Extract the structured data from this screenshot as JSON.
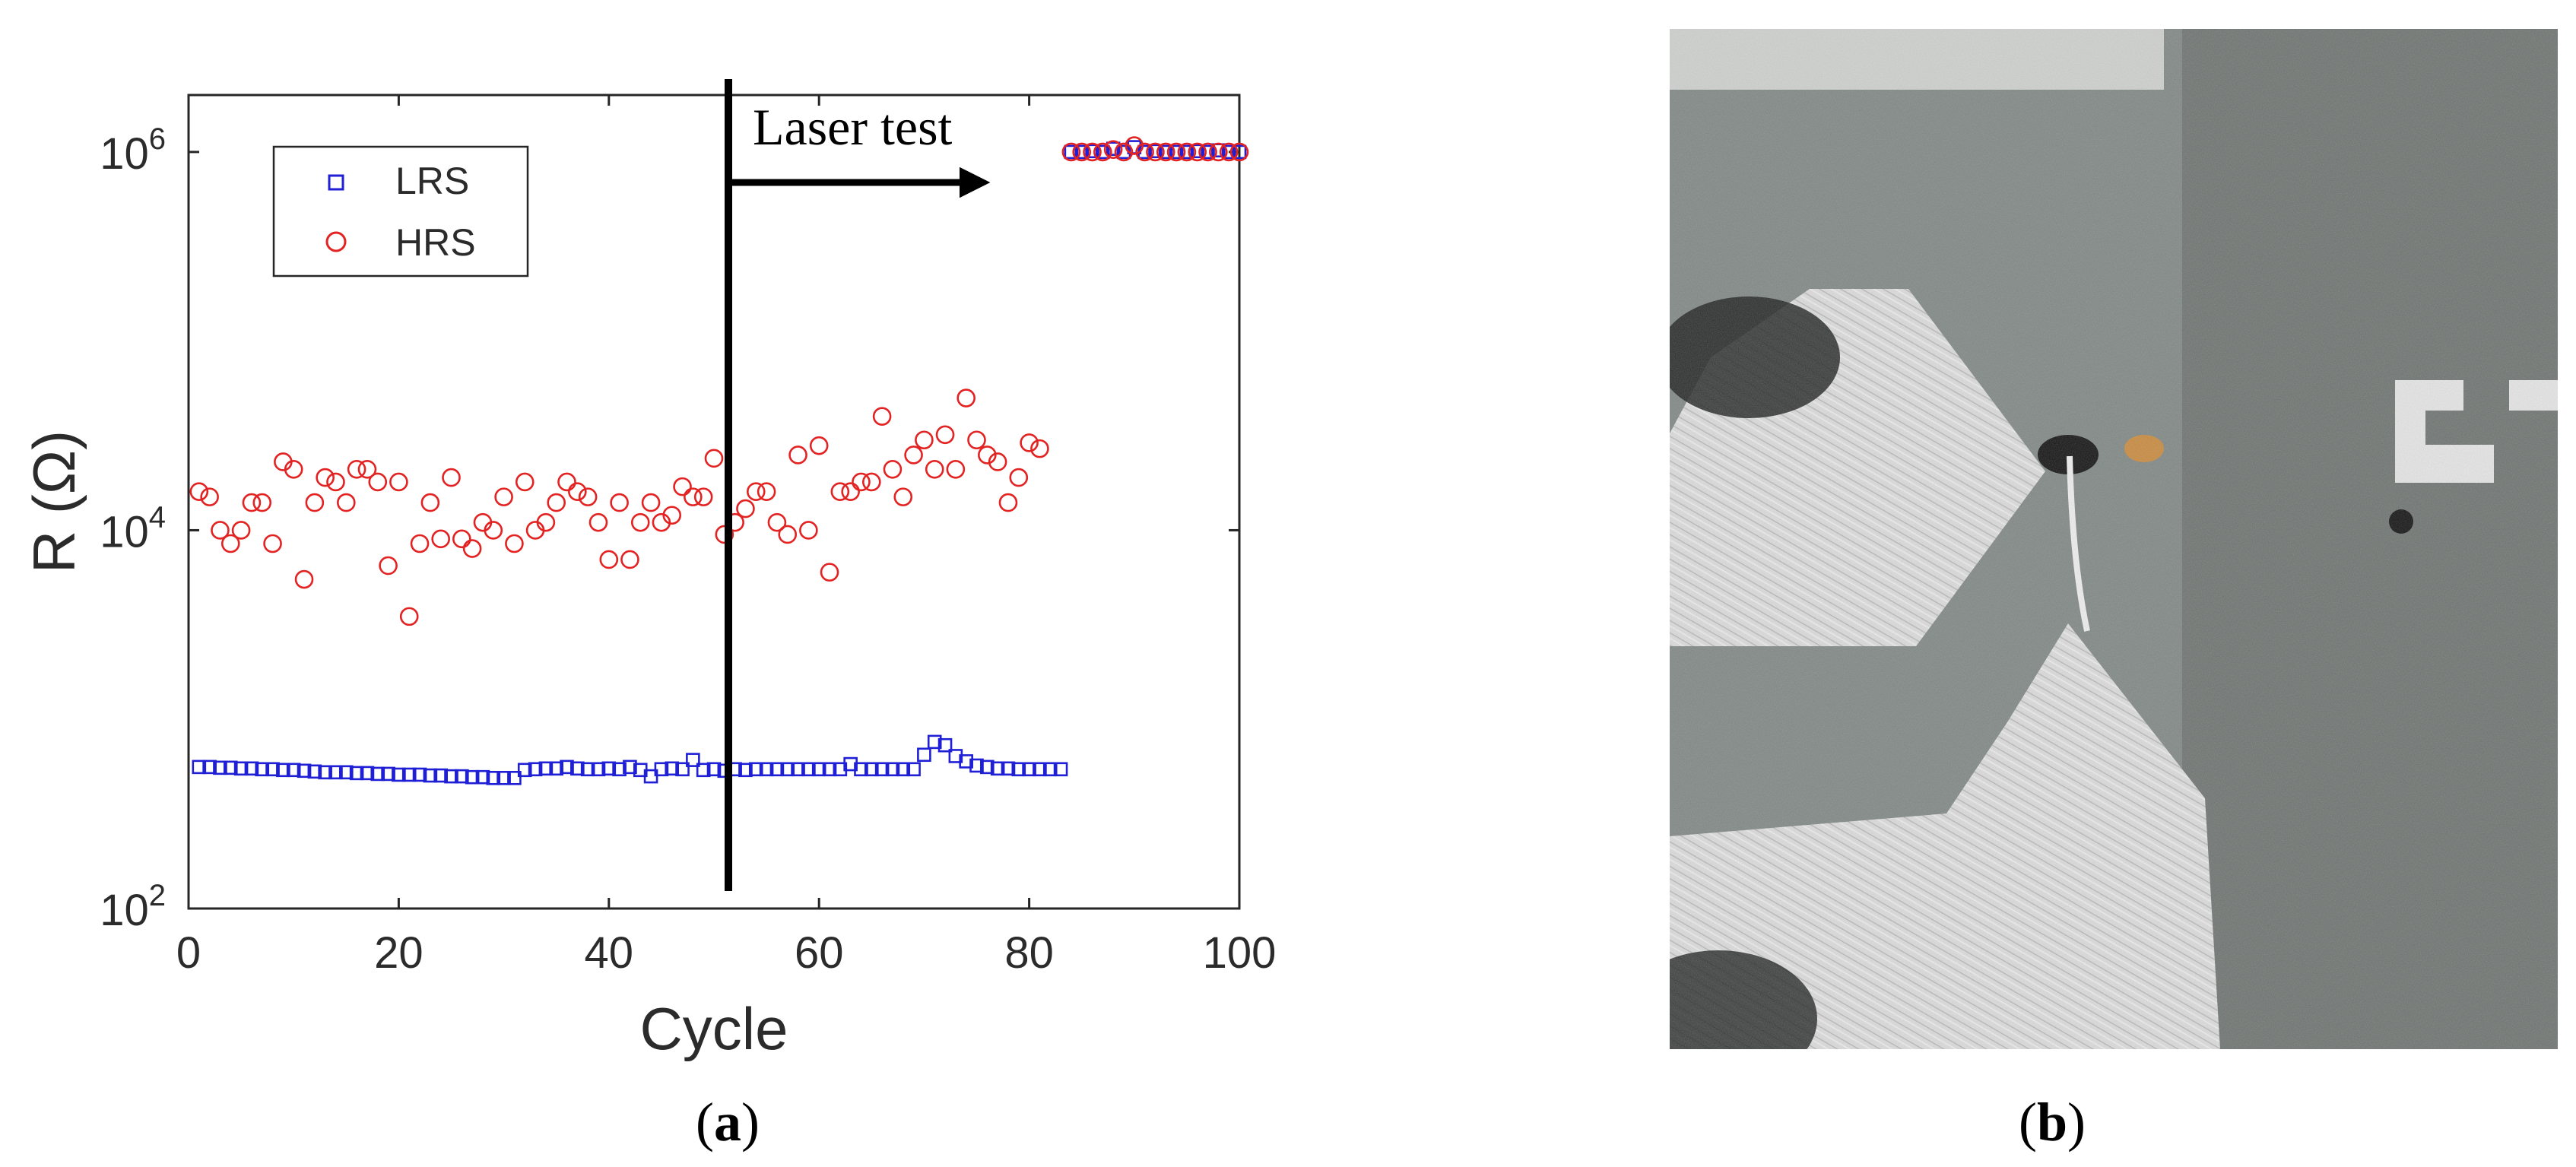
{
  "chart_data": {
    "type": "scatter",
    "xlabel": "Cycle",
    "ylabel": "R (Ω)",
    "xlim": [
      0,
      100
    ],
    "ylim": [
      100,
      2000000
    ],
    "yscale": "log",
    "xticks": [
      "0",
      "20",
      "40",
      "60",
      "80",
      "100"
    ],
    "yticks": [
      {
        "base": "10",
        "exp": "2"
      },
      {
        "base": "10",
        "exp": "4"
      },
      {
        "base": "10",
        "exp": "6"
      }
    ],
    "legend": {
      "placement": "top-left",
      "entries": [
        "LRS",
        "HRS"
      ]
    },
    "annotation": {
      "text": "Laser test",
      "x_line": 51.5,
      "arrow_from": 51.5,
      "arrow_to": 78
    },
    "grid": false,
    "series": [
      {
        "name": "LRS",
        "color": "#1f1fd6",
        "marker": "square",
        "x": [
          1,
          2,
          3,
          4,
          5,
          6,
          7,
          8,
          9,
          10,
          11,
          12,
          13,
          14,
          15,
          16,
          17,
          18,
          19,
          20,
          21,
          22,
          23,
          24,
          25,
          26,
          27,
          28,
          29,
          30,
          31,
          32,
          33,
          34,
          35,
          36,
          37,
          38,
          39,
          40,
          41,
          42,
          43,
          44,
          45,
          46,
          47,
          48,
          49,
          50,
          51,
          52,
          53,
          54,
          55,
          56,
          57,
          58,
          59,
          60,
          61,
          62,
          63,
          64,
          65,
          66,
          67,
          68,
          69,
          70,
          71,
          72,
          73,
          74,
          75,
          76,
          77,
          78,
          79,
          80,
          81,
          82,
          83,
          84,
          85,
          86,
          87,
          88,
          89,
          90,
          91,
          92,
          93,
          94,
          95,
          96,
          97,
          98,
          99,
          100
        ],
        "y": [
          560,
          560,
          555,
          555,
          550,
          550,
          545,
          545,
          540,
          540,
          535,
          530,
          525,
          525,
          525,
          520,
          520,
          515,
          515,
          510,
          510,
          510,
          505,
          505,
          500,
          500,
          495,
          495,
          490,
          490,
          490,
          540,
          545,
          550,
          550,
          560,
          550,
          545,
          545,
          550,
          545,
          560,
          540,
          500,
          545,
          550,
          545,
          610,
          540,
          545,
          535,
          545,
          540,
          545,
          545,
          545,
          545,
          545,
          545,
          545,
          545,
          545,
          580,
          545,
          545,
          545,
          545,
          545,
          545,
          650,
          760,
          730,
          640,
          600,
          570,
          560,
          550,
          550,
          545,
          545,
          545,
          545,
          545,
          1000000,
          1000000,
          1010000,
          1000000,
          1040000,
          1000000,
          1060000,
          1000000,
          1010000,
          1000000,
          1000000,
          1000000,
          1010000,
          1000000,
          1020000,
          1000000,
          1000000
        ]
      },
      {
        "name": "HRS",
        "color": "#e32222",
        "marker": "circle",
        "x": [
          1,
          2,
          3,
          4,
          5,
          6,
          7,
          8,
          9,
          10,
          11,
          12,
          13,
          14,
          15,
          16,
          17,
          18,
          19,
          20,
          21,
          22,
          23,
          24,
          25,
          26,
          27,
          28,
          29,
          30,
          31,
          32,
          33,
          34,
          35,
          36,
          37,
          38,
          39,
          40,
          41,
          42,
          43,
          44,
          45,
          46,
          47,
          48,
          49,
          50,
          51,
          52,
          53,
          54,
          55,
          56,
          57,
          58,
          59,
          60,
          61,
          62,
          63,
          64,
          65,
          66,
          67,
          68,
          69,
          70,
          71,
          72,
          73,
          74,
          75,
          76,
          77,
          78,
          79,
          80,
          81,
          82,
          83,
          84,
          85,
          86,
          87,
          88,
          89,
          90,
          91,
          92,
          93,
          94,
          95,
          96,
          97,
          98,
          99,
          100
        ],
        "y": [
          16000,
          15000,
          10000,
          8500,
          10000,
          14000,
          14000,
          8500,
          23000,
          21000,
          5500,
          14000,
          19000,
          18000,
          14000,
          21000,
          21000,
          18000,
          6500,
          18000,
          3500,
          8500,
          14000,
          9000,
          19000,
          9000,
          8000,
          11000,
          10000,
          15000,
          8500,
          18000,
          10000,
          11000,
          14000,
          18000,
          16000,
          15000,
          11000,
          7000,
          14000,
          7000,
          11000,
          14000,
          11000,
          12000,
          17000,
          15000,
          15000,
          24000,
          9500,
          11000,
          13000,
          16000,
          16000,
          11000,
          9500,
          25000,
          10000,
          28000,
          6000,
          16000,
          16000,
          18000,
          18000,
          40000,
          21000,
          15000,
          25000,
          30000,
          21000,
          32000,
          21000,
          50000,
          30000,
          25000,
          23000,
          14000,
          19000,
          29000,
          27000,
          null,
          null,
          1000000,
          1000000,
          1000000,
          1000000,
          1030000,
          1000000,
          1080000,
          1000000,
          1000000,
          1000000,
          1000000,
          1000000,
          1000000,
          1000000,
          1000000,
          1000000,
          1000000
        ]
      }
    ]
  },
  "panel_a_label": {
    "open": "(",
    "letter": "a",
    "close": ")"
  },
  "panel_b_label": {
    "open": "(",
    "letter": "b",
    "close": ")"
  }
}
